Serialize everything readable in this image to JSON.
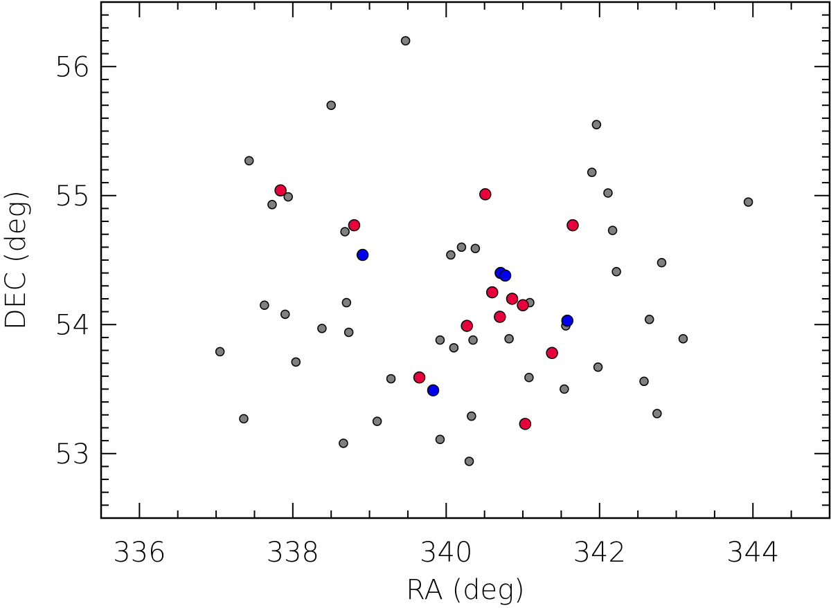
{
  "chart_data": {
    "type": "scatter",
    "xlabel": "RA (deg)",
    "ylabel": "DEC (deg)",
    "xlim": [
      335.5,
      345.0
    ],
    "ylim": [
      52.5,
      56.5
    ],
    "x_major_ticks": [
      336,
      338,
      340,
      342,
      344
    ],
    "x_tick_labels": [
      "336",
      "338",
      "340",
      "342",
      "344"
    ],
    "y_major_ticks": [
      53,
      54,
      55,
      56
    ],
    "y_tick_labels": [
      "53",
      "54",
      "55",
      "56"
    ],
    "x_minor_step": 0.5,
    "y_minor_step": 0.1,
    "grid": false,
    "series": [
      {
        "color": "#808080",
        "points": [
          [
            339.47,
            56.2
          ],
          [
            338.5,
            55.7
          ],
          [
            337.43,
            55.27
          ],
          [
            341.96,
            55.55
          ],
          [
            341.9,
            55.18
          ],
          [
            342.11,
            55.02
          ],
          [
            343.94,
            54.95
          ],
          [
            337.94,
            54.99
          ],
          [
            337.73,
            54.93
          ],
          [
            338.68,
            54.72
          ],
          [
            342.17,
            54.73
          ],
          [
            340.2,
            54.6
          ],
          [
            340.38,
            54.59
          ],
          [
            340.06,
            54.54
          ],
          [
            342.81,
            54.48
          ],
          [
            342.22,
            54.41
          ],
          [
            337.63,
            54.15
          ],
          [
            338.7,
            54.17
          ],
          [
            337.9,
            54.08
          ],
          [
            341.09,
            54.17
          ],
          [
            338.38,
            53.97
          ],
          [
            338.73,
            53.94
          ],
          [
            342.65,
            54.04
          ],
          [
            341.56,
            53.99
          ],
          [
            339.92,
            53.88
          ],
          [
            340.35,
            53.88
          ],
          [
            340.82,
            53.89
          ],
          [
            343.09,
            53.89
          ],
          [
            337.05,
            53.79
          ],
          [
            340.1,
            53.82
          ],
          [
            338.04,
            53.71
          ],
          [
            341.98,
            53.67
          ],
          [
            339.28,
            53.58
          ],
          [
            341.08,
            53.59
          ],
          [
            342.58,
            53.56
          ],
          [
            341.54,
            53.5
          ],
          [
            337.36,
            53.27
          ],
          [
            339.1,
            53.25
          ],
          [
            340.33,
            53.29
          ],
          [
            342.75,
            53.31
          ],
          [
            339.92,
            53.11
          ],
          [
            338.66,
            53.08
          ],
          [
            340.3,
            52.94
          ]
        ]
      },
      {
        "color": "#e8003d",
        "points": [
          [
            337.84,
            55.04
          ],
          [
            340.51,
            55.01
          ],
          [
            338.8,
            54.77
          ],
          [
            341.65,
            54.77
          ],
          [
            340.6,
            54.25
          ],
          [
            340.86,
            54.2
          ],
          [
            341.0,
            54.15
          ],
          [
            340.27,
            53.99
          ],
          [
            340.7,
            54.06
          ],
          [
            341.38,
            53.78
          ],
          [
            339.65,
            53.59
          ],
          [
            341.03,
            53.23
          ]
        ]
      },
      {
        "color": "#0000ee",
        "points": [
          [
            338.91,
            54.54
          ],
          [
            340.71,
            54.4
          ],
          [
            340.77,
            54.38
          ],
          [
            341.58,
            54.03
          ],
          [
            339.83,
            53.49
          ]
        ]
      }
    ]
  }
}
